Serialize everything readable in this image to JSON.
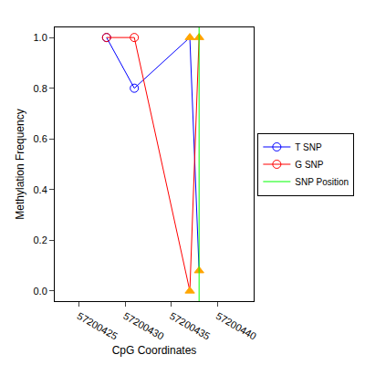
{
  "chart_data": {
    "type": "line",
    "x_label": "CpG Coordinates",
    "y_label": "Methylation Frequency",
    "xlim": [
      57200422.4,
      57200443.9
    ],
    "xticks": [
      57200425,
      57200430,
      57200435,
      57200440
    ],
    "ylim": [
      -0.04,
      1.04
    ],
    "yticks": [
      {
        "value": 0,
        "label": "0.0"
      },
      {
        "value": 0.2,
        "label": "0.2"
      },
      {
        "value": 0.4,
        "label": "0.4"
      },
      {
        "value": 0.6,
        "label": "0.6"
      },
      {
        "value": 0.8,
        "label": "0.8"
      },
      {
        "value": 1,
        "label": "1.0"
      }
    ],
    "grid": false,
    "legend": "right",
    "series": [
      {
        "name": "T SNP",
        "color": "#0000ff",
        "type": "line",
        "x": [
          57200428,
          57200431,
          57200437,
          57200438
        ],
        "values": [
          1.0,
          0.8,
          1.0,
          0.08
        ],
        "marker": [
          "circle-open",
          "circle-open",
          "triangle-up",
          "triangle-up"
        ],
        "colors": [
          "#0000ff",
          "#0000ff",
          "#ffa500",
          "#ffa500"
        ]
      },
      {
        "name": "G SNP",
        "color": "#ff0000",
        "type": "line",
        "x": [
          57200428,
          57200431,
          57200437,
          57200438
        ],
        "values": [
          1.0,
          1.0,
          0.0,
          1.0
        ],
        "marker": [
          "circle-open",
          "circle-open",
          "triangle-up",
          "triangle-up"
        ],
        "colors": [
          "#ff0000",
          "#ff0000",
          "#ffa500",
          "#ffa500"
        ]
      },
      {
        "name": "SNP Position",
        "color": "#00ff00",
        "type": "vline",
        "x": [
          57200438
        ]
      }
    ]
  }
}
